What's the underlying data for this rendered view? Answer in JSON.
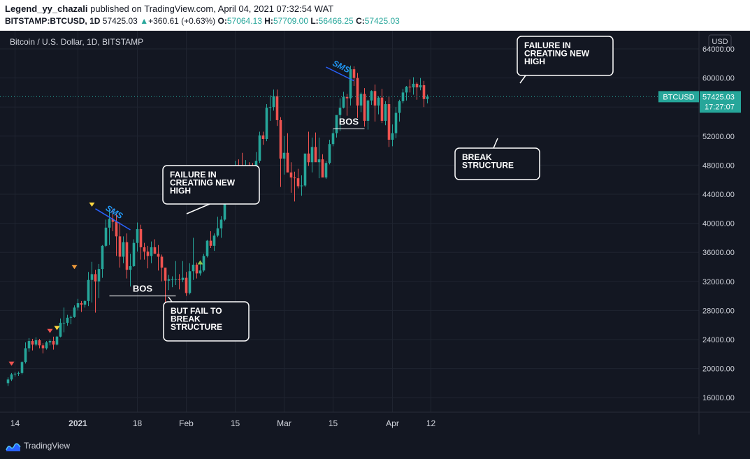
{
  "header": {
    "author": "Legend_yy_chazali",
    "published": "published on TradingView.com, April 04, 2021 07:32:54 WAT",
    "symbol": "BITSTAMP:BTCUSD, 1D",
    "last": "57425.03",
    "change": "+360.61 (+0.63%)",
    "open_label": "O:",
    "open": "57064.13",
    "high_label": "H:",
    "high": "57709.00",
    "low_label": "L:",
    "low": "56466.25",
    "close_label": "C:",
    "close": "57425.03",
    "change_arrow": "▲"
  },
  "footer": {
    "brand": "TradingView"
  },
  "colors": {
    "up": "#26a69a",
    "down": "#ef5350",
    "sms_line": "#2962ff",
    "background": "#131722",
    "grid": "#1f2430"
  },
  "chart_data": {
    "type": "candlestick",
    "title": "Bitcoin / U.S. Dollar, 1D, BITSTAMP",
    "currency": "USD",
    "ylim": [
      14000,
      66500
    ],
    "y_ticks": [
      16000,
      20000,
      24000,
      28000,
      32000,
      36000,
      40000,
      44000,
      48000,
      52000,
      56000,
      60000,
      64000
    ],
    "y_tick_labels": [
      "16000.00",
      "20000.00",
      "24000.00",
      "28000.00",
      "32000.00",
      "36000.00",
      "40000.00",
      "44000.00",
      "48000.00",
      "52000.00",
      "56000.00",
      "60000.00",
      "64000.00"
    ],
    "x_start": "2020-12-12",
    "x_ticks": [
      {
        "date": "2020-12-14",
        "label": "14",
        "bold": false
      },
      {
        "date": "2021-01-01",
        "label": "2021",
        "bold": true
      },
      {
        "date": "2021-01-18",
        "label": "18",
        "bold": false
      },
      {
        "date": "2021-02-01",
        "label": "Feb",
        "bold": false
      },
      {
        "date": "2021-02-15",
        "label": "15",
        "bold": false
      },
      {
        "date": "2021-03-01",
        "label": "Mar",
        "bold": false
      },
      {
        "date": "2021-03-15",
        "label": "15",
        "bold": false
      },
      {
        "date": "2021-04-01",
        "label": "Apr",
        "bold": false
      },
      {
        "date": "2021-04-12",
        "label": "12",
        "bold": false
      }
    ],
    "ohlc": [
      [
        18000,
        18800,
        17600,
        18500
      ],
      [
        18500,
        19400,
        18300,
        19200
      ],
      [
        19200,
        19500,
        18900,
        19300
      ],
      [
        19300,
        19600,
        19000,
        19400
      ],
      [
        19400,
        21000,
        19200,
        20900
      ],
      [
        20900,
        23600,
        20700,
        22800
      ],
      [
        22800,
        24200,
        22300,
        23800
      ],
      [
        23800,
        24100,
        22500,
        23300
      ],
      [
        23300,
        24300,
        23100,
        23900
      ],
      [
        23900,
        24100,
        22800,
        23200
      ],
      [
        23200,
        23500,
        22100,
        22800
      ],
      [
        22800,
        23800,
        22600,
        23600
      ],
      [
        23600,
        24000,
        23200,
        23800
      ],
      [
        23800,
        24400,
        22600,
        23300
      ],
      [
        23300,
        24500,
        23200,
        24400
      ],
      [
        24400,
        26900,
        24300,
        26300
      ],
      [
        26300,
        28400,
        25000,
        26300
      ],
      [
        26300,
        27400,
        25900,
        27000
      ],
      [
        27000,
        27300,
        26100,
        27100
      ],
      [
        27100,
        28700,
        27000,
        28400
      ],
      [
        28400,
        29600,
        28000,
        29000
      ],
      [
        29000,
        29300,
        27800,
        28800
      ],
      [
        28800,
        29400,
        28400,
        29300
      ],
      [
        29300,
        33300,
        28600,
        32200
      ],
      [
        32200,
        34700,
        29100,
        33000
      ],
      [
        33000,
        33600,
        27700,
        32000
      ],
      [
        32000,
        34400,
        29700,
        33700
      ],
      [
        33700,
        37000,
        32500,
        36900
      ],
      [
        36900,
        40500,
        36700,
        39400
      ],
      [
        39400,
        41900,
        37000,
        40600
      ],
      [
        40600,
        42000,
        38900,
        40200
      ],
      [
        40200,
        41400,
        35500,
        38200
      ],
      [
        38200,
        40100,
        33900,
        35400
      ],
      [
        35400,
        38200,
        34500,
        37400
      ],
      [
        37400,
        38600,
        32400,
        33600
      ],
      [
        33600,
        35800,
        31300,
        34100
      ],
      [
        34100,
        37800,
        34000,
        37300
      ],
      [
        37300,
        40100,
        36100,
        39200
      ],
      [
        39200,
        39800,
        35000,
        36700
      ],
      [
        36700,
        37300,
        35000,
        36100
      ],
      [
        36100,
        36900,
        33800,
        35500
      ],
      [
        35500,
        37500,
        34500,
        36700
      ],
      [
        36700,
        37800,
        35900,
        35800
      ],
      [
        35800,
        37000,
        33500,
        35400
      ],
      [
        35400,
        35700,
        32000,
        33900
      ],
      [
        33900,
        33800,
        29000,
        32100
      ],
      [
        32100,
        32900,
        30800,
        32300
      ],
      [
        32300,
        32700,
        31200,
        32300
      ],
      [
        32300,
        34800,
        31500,
        32300
      ],
      [
        32300,
        33000,
        30900,
        32200
      ],
      [
        32200,
        34800,
        31900,
        32500
      ],
      [
        32500,
        33300,
        30000,
        30400
      ],
      [
        30400,
        34500,
        30200,
        33400
      ],
      [
        33400,
        38000,
        32200,
        34300
      ],
      [
        34300,
        34600,
        32400,
        33100
      ],
      [
        33100,
        34400,
        32800,
        33500
      ],
      [
        33500,
        35800,
        33300,
        35500
      ],
      [
        35500,
        37700,
        35300,
        37600
      ],
      [
        37600,
        38900,
        36600,
        36900
      ],
      [
        36900,
        38600,
        36200,
        38300
      ],
      [
        38300,
        40900,
        38100,
        39300
      ],
      [
        39300,
        41000,
        38000,
        40500
      ],
      [
        40500,
        46700,
        40300,
        46400
      ],
      [
        46400,
        48000,
        45000,
        46500
      ],
      [
        46500,
        47200,
        43800,
        44800
      ],
      [
        44800,
        48600,
        44200,
        47900
      ],
      [
        47900,
        48800,
        46500,
        47400
      ],
      [
        47400,
        49700,
        47100,
        47200
      ],
      [
        47200,
        48700,
        45800,
        48000
      ],
      [
        48000,
        48400,
        46800,
        47900
      ],
      [
        47900,
        48300,
        45900,
        47400
      ],
      [
        47400,
        49800,
        47000,
        48600
      ],
      [
        48600,
        52600,
        48300,
        52100
      ],
      [
        52100,
        52600,
        50800,
        51600
      ],
      [
        51600,
        56400,
        51300,
        55900
      ],
      [
        55900,
        57600,
        54100,
        56000
      ],
      [
        56000,
        58400,
        55500,
        57500
      ],
      [
        57500,
        58400,
        53400,
        54200
      ],
      [
        54200,
        54600,
        45000,
        48900
      ],
      [
        48900,
        52000,
        46700,
        49700
      ],
      [
        49700,
        52400,
        47000,
        47000
      ],
      [
        47000,
        48400,
        44200,
        46300
      ],
      [
        46300,
        47100,
        43000,
        46200
      ],
      [
        46200,
        47500,
        44800,
        45100
      ],
      [
        45100,
        46600,
        43800,
        45200
      ],
      [
        45200,
        49500,
        45000,
        49600
      ],
      [
        49600,
        52600,
        47900,
        48400
      ],
      [
        48400,
        51800,
        47000,
        50500
      ],
      [
        50500,
        52500,
        48500,
        48400
      ],
      [
        48400,
        51800,
        46200,
        48800
      ],
      [
        48800,
        49500,
        46400,
        46300
      ],
      [
        46300,
        48600,
        46100,
        48300
      ],
      [
        48300,
        51500,
        48100,
        50900
      ],
      [
        50900,
        53000,
        50600,
        52400
      ],
      [
        52400,
        54400,
        51800,
        54900
      ],
      [
        54900,
        57200,
        52700,
        55900
      ],
      [
        55900,
        58100,
        55800,
        57400
      ],
      [
        57400,
        57800,
        54800,
        57200
      ],
      [
        57200,
        61700,
        56200,
        61200
      ],
      [
        61200,
        61600,
        58900,
        60000
      ],
      [
        60000,
        60700,
        54500,
        56200
      ],
      [
        56200,
        58000,
        55300,
        57800
      ],
      [
        57800,
        58600,
        53300,
        54100
      ],
      [
        54100,
        57000,
        52900,
        56900
      ],
      [
        56900,
        58300,
        56300,
        58200
      ],
      [
        58200,
        59100,
        54000,
        56200
      ],
      [
        56200,
        57500,
        55000,
        57300
      ],
      [
        57300,
        58500,
        53800,
        54100
      ],
      [
        54100,
        56800,
        53500,
        56400
      ],
      [
        56400,
        57500,
        50500,
        51500
      ],
      [
        51500,
        53600,
        50600,
        52400
      ],
      [
        52400,
        56000,
        51700,
        55200
      ],
      [
        55200,
        57000,
        54000,
        56800
      ],
      [
        56800,
        58500,
        56500,
        58000
      ],
      [
        58000,
        58900,
        56900,
        58800
      ],
      [
        58800,
        59800,
        58000,
        58700
      ],
      [
        58700,
        60100,
        57700,
        59200
      ],
      [
        59200,
        59400,
        57000,
        58700
      ],
      [
        58700,
        60000,
        58300,
        59000
      ],
      [
        59000,
        59600,
        56000,
        57100
      ],
      [
        57100,
        57700,
        56500,
        57425
      ]
    ],
    "last_price": 57425.03,
    "last_price_label": "BTCUSD",
    "last_price_value_label": "57425.03",
    "countdown_label": "17:27:07",
    "markers": [
      {
        "date": "2020-12-13",
        "price": 20000,
        "dir": "down",
        "color": "#ef5350"
      },
      {
        "date": "2020-12-31",
        "price": 33300,
        "dir": "down",
        "color": "#ef9a3a"
      },
      {
        "date": "2021-01-05",
        "price": 41900,
        "dir": "down",
        "color": "#ffd740"
      },
      {
        "date": "2020-12-24",
        "price": 24500,
        "dir": "down",
        "color": "#ef5350"
      },
      {
        "date": "2020-12-26",
        "price": 24900,
        "dir": "down",
        "color": "#ffd740"
      },
      {
        "date": "2021-02-05",
        "price": 35300,
        "dir": "up",
        "color": "#8bc34a"
      }
    ],
    "drawings": {
      "sms_lines": [
        {
          "from": [
            "2021-01-06",
            42000
          ],
          "to": [
            "2021-01-16",
            39100
          ],
          "label": "SMS"
        },
        {
          "from": [
            "2021-03-13",
            61500
          ],
          "to": [
            "2021-03-21",
            59600
          ],
          "label": "SMS"
        }
      ],
      "bos_lines": [
        {
          "from": [
            "2021-01-10",
            30000
          ],
          "to": [
            "2021-01-29",
            30000
          ],
          "label": "BOS"
        },
        {
          "from": [
            "2021-03-15",
            53000
          ],
          "to": [
            "2021-03-24",
            53000
          ],
          "label": "BOS"
        }
      ]
    },
    "annotations": [
      {
        "lines": [
          "FAILURE IN",
          "CREATING NEW",
          "HIGH"
        ]
      },
      {
        "lines": [
          "BUT FAIL TO",
          "BREAK",
          "STRUCTURE"
        ]
      },
      {
        "lines": [
          "FAILURE IN",
          "CREATING NEW",
          "HIGH"
        ]
      },
      {
        "lines": [
          "BREAK",
          "STRUCTURE"
        ]
      }
    ]
  }
}
